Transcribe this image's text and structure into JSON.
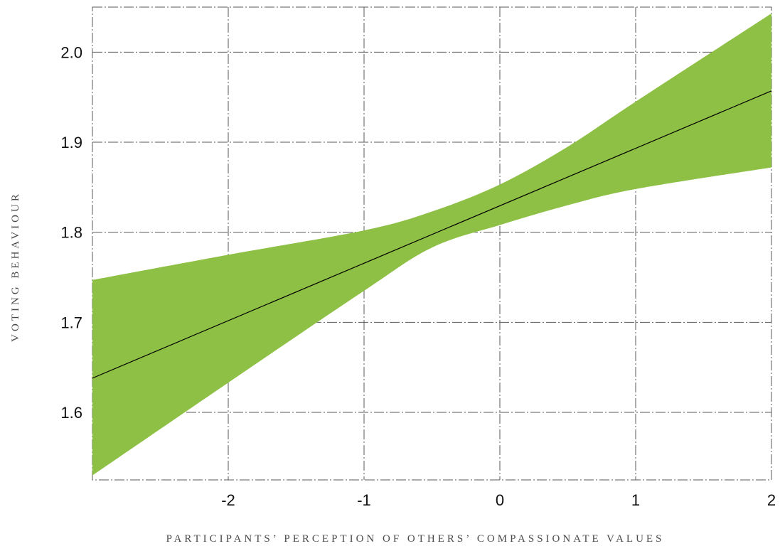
{
  "chart_data": {
    "type": "line",
    "title": "",
    "xlabel": "PARTICIPANTS’ PERCEPTION OF OTHERS’ COMPASSIONATE VALUES",
    "ylabel": "VOTING BEHAVIOUR",
    "xlim": [
      -3,
      2
    ],
    "ylim": [
      1.525,
      2.05
    ],
    "x_ticks": [
      -2,
      -1,
      0,
      1,
      2
    ],
    "x_tick_labels": [
      "-2",
      "-1",
      "0",
      "1",
      "2"
    ],
    "y_ticks": [
      1.6,
      1.7,
      1.8,
      1.9,
      2.0
    ],
    "y_tick_labels": [
      "1.6",
      "1.7",
      "1.8",
      "1.9",
      "2.0"
    ],
    "grid": true,
    "line": {
      "x": [
        -3,
        2
      ],
      "y": [
        1.638,
        1.957
      ],
      "color": "#000000"
    },
    "band": {
      "color": "#8dc044",
      "x": [
        -3,
        -2,
        -1,
        -0.5,
        0,
        0.5,
        1,
        2
      ],
      "upper": [
        1.747,
        1.775,
        1.802,
        1.823,
        1.853,
        1.895,
        1.945,
        2.043
      ],
      "lower": [
        1.53,
        1.633,
        1.735,
        1.783,
        1.808,
        1.83,
        1.848,
        1.872
      ]
    }
  }
}
